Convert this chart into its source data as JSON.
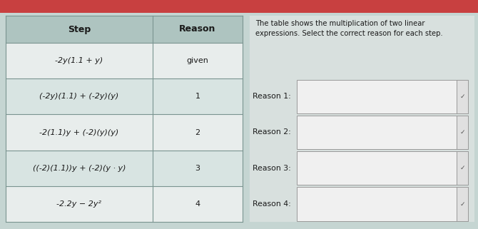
{
  "description": "The table shows the multiplication of two linear\nexpressions. Select the correct reason for each step.",
  "header": [
    "Step",
    "Reason"
  ],
  "rows": [
    [
      "-2y(1.1 + y)",
      "given"
    ],
    [
      "(-2y)(1.1) + (-2y)(y)",
      "1"
    ],
    [
      "-2(1.1)y + (-2)(y)(y)",
      "2"
    ],
    [
      "((-2)(1.1))y + (-2)(y · y)",
      "3"
    ],
    [
      "-2.2y − 2y²",
      "4"
    ]
  ],
  "reason_labels": [
    "Reason 1:",
    "Reason 2:",
    "Reason 3:",
    "Reason 4:"
  ],
  "header_bg": "#aec4c0",
  "row_bg_light": "#e8edec",
  "row_bg_dark": "#d8e4e2",
  "border_color": "#7a9490",
  "text_color": "#1a1a1a",
  "bg_color": "#c5d5d2",
  "right_bg": "#d8e0de",
  "input_box_color": "#f0f0f0",
  "input_border_color": "#999999",
  "fig_width": 6.7,
  "fig_height": 3.21,
  "title_bar_color": "#c84040"
}
